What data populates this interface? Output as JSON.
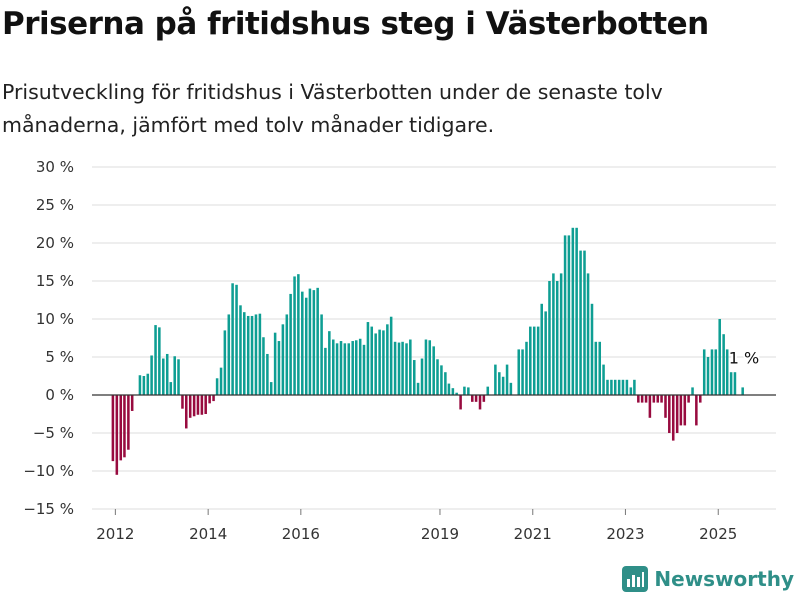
{
  "page": {
    "title": "Priserna på fritidshus steg i Västerbotten",
    "subtitle": "Prisutveckling för fritidshus i Västerbotten under de senaste tolv månaderna, jämfört med tolv månader tidigare.",
    "brand": "Newsworthy",
    "brand_icon": "bar-chart-logo-icon"
  },
  "colors": {
    "positive": "#0e9e93",
    "negative": "#980b3f",
    "grid": "#dddddd",
    "zero_line": "#333333"
  },
  "chart_data": {
    "type": "bar",
    "title": "",
    "xlabel": "",
    "ylabel": "",
    "ylim": [
      -15,
      30
    ],
    "y_ticks": [
      30,
      25,
      20,
      15,
      10,
      5,
      0,
      -5,
      -10,
      -15
    ],
    "y_tick_labels": [
      "30 %",
      "25 %",
      "20 %",
      "15 %",
      "10 %",
      "5 %",
      "0 %",
      "−5 %",
      "−10 %",
      "−15 %"
    ],
    "x_ticks": [
      {
        "label": "2012",
        "year": 2012
      },
      {
        "label": "2014",
        "year": 2014
      },
      {
        "label": "2016",
        "year": 2016
      },
      {
        "label": "2019",
        "year": 2019
      },
      {
        "label": "2021",
        "year": 2021
      },
      {
        "label": "2023",
        "year": 2023
      },
      {
        "label": "2025",
        "year": 2025
      }
    ],
    "grid": true,
    "start": "2011-12",
    "frequency": "monthly",
    "values": [
      -8.7,
      -10.5,
      -8.6,
      -8.2,
      -7.2,
      -2.1,
      0,
      2.6,
      2.5,
      2.8,
      5.2,
      9.2,
      8.9,
      4.8,
      5.4,
      1.7,
      5.1,
      4.7,
      -1.8,
      -4.4,
      -3.0,
      -2.8,
      -2.6,
      -2.6,
      -2.5,
      -1.1,
      -0.8,
      2.2,
      3.6,
      8.5,
      10.6,
      14.7,
      14.5,
      11.8,
      10.9,
      10.4,
      10.4,
      10.6,
      10.7,
      7.6,
      5.4,
      1.7,
      8.2,
      7.1,
      9.3,
      10.6,
      13.3,
      15.6,
      15.9,
      13.6,
      12.8,
      14.0,
      13.8,
      14.1,
      10.6,
      6.2,
      8.4,
      7.3,
      6.8,
      7.1,
      6.8,
      6.8,
      7.1,
      7.2,
      7.4,
      6.6,
      9.6,
      9.0,
      8.1,
      8.6,
      8.5,
      9.3,
      10.3,
      7.0,
      6.9,
      7.0,
      6.8,
      7.3,
      4.6,
      1.6,
      4.8,
      7.3,
      7.2,
      6.4,
      4.7,
      3.9,
      3.0,
      1.5,
      0.9,
      0.3,
      -1.9,
      1.1,
      1.0,
      -0.9,
      -0.9,
      -1.9,
      -0.9,
      1.1,
      0,
      4.0,
      3.0,
      2.4,
      4.0,
      1.6,
      0,
      6.0,
      6.0,
      7.0,
      9.0,
      9.0,
      9.0,
      12.0,
      11.0,
      15.0,
      16.0,
      15.0,
      16.0,
      21.0,
      21.0,
      22.0,
      22.0,
      19.0,
      19.0,
      16.0,
      12.0,
      7.0,
      7.0,
      4.0,
      2.0,
      2.0,
      2.0,
      2.0,
      2.0,
      2.0,
      1.0,
      2.0,
      -1.0,
      -1.0,
      -1.0,
      -3.0,
      -1.0,
      -1.0,
      -1.0,
      -3.0,
      -5.0,
      -6.0,
      -5.0,
      -4.0,
      -4.0,
      -1.0,
      1.0,
      -4.0,
      -1.0,
      6.0,
      5.0,
      6.0,
      6.0,
      10.0,
      8.0,
      6.0,
      3.0,
      3.0,
      0,
      1.0
    ],
    "annotation": {
      "text": "1 %",
      "value": 1.0
    }
  }
}
